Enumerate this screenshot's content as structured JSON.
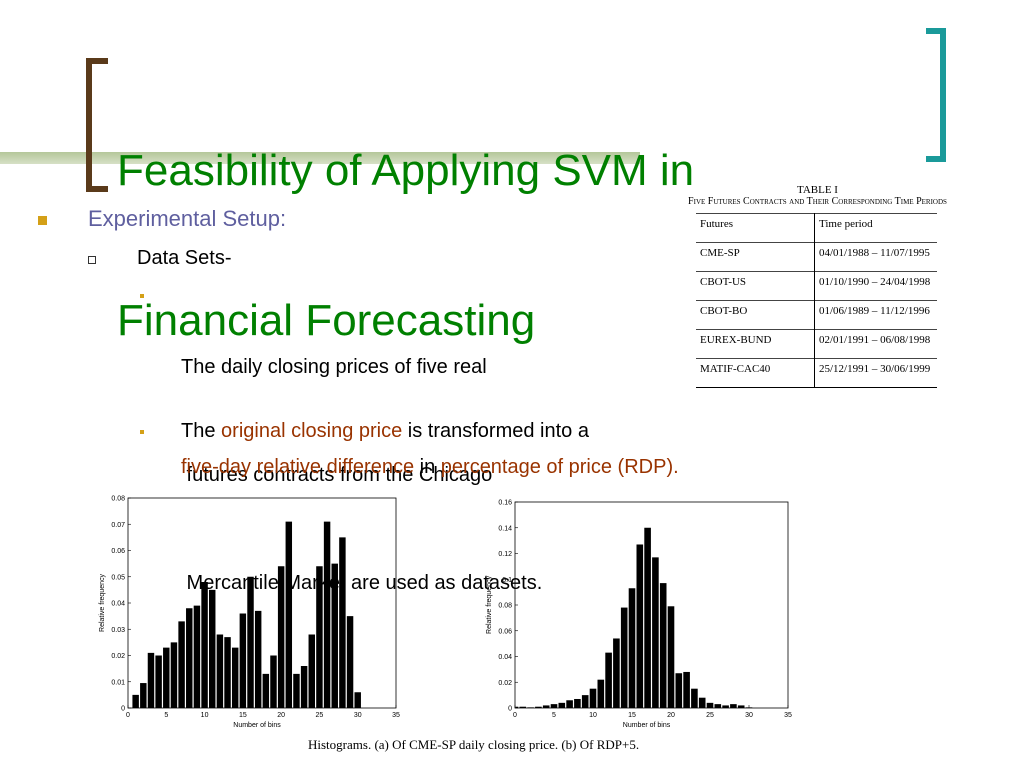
{
  "title": {
    "lines": [
      "Feasibility of Applying SVM in",
      "Financial Forecasting"
    ]
  },
  "bullets": {
    "level1": "Experimental Setup:",
    "level2": "Data Sets-",
    "items": [
      {
        "lines": [
          "The daily closing prices of five real",
          " futures contracts from the Chicago",
          " Mercantile Market are used as datasets."
        ]
      },
      {
        "lines": [
          [
            {
              "text": "The ",
              "color": "#000000"
            },
            {
              "text": "original closing price",
              "color": "#993300"
            },
            {
              "text": " is transformed into a",
              "color": "#000000"
            }
          ],
          [
            {
              "text": "five-day relative difference",
              "color": "#993300"
            },
            {
              "text": " in ",
              "color": "#000000"
            },
            {
              "text": "percentage of price (RDP).",
              "color": "#993300"
            }
          ]
        ]
      }
    ]
  },
  "table": {
    "label": "TABLE I",
    "caption": "Five Futures Contracts and Their Corresponding Time Periods",
    "columns": [
      "Futures",
      "Time period"
    ],
    "rows": [
      [
        "CME-SP",
        "04/01/1988 – 11/07/1995"
      ],
      [
        "CBOT-US",
        "01/10/1990 – 24/04/1998"
      ],
      [
        "CBOT-BO",
        "01/06/1989 – 11/12/1996"
      ],
      [
        "EUREX-BUND",
        "02/01/1991 – 06/08/1998"
      ],
      [
        "MATIF-CAC40",
        "25/12/1991 – 30/06/1999"
      ]
    ]
  },
  "chart_data": [
    {
      "type": "histogram",
      "x_label": "Number of bins",
      "y_label": "Relative frequency",
      "color": "#000000",
      "bins": [
        0.5,
        1.5,
        2.5,
        3.5,
        4.5,
        5.5,
        6.5,
        7.5,
        8.5,
        9.5,
        10.5,
        11.5,
        12.5,
        13.5,
        14.5,
        15.5,
        16.5,
        17.5,
        18.5,
        19.5,
        20.5,
        21.5,
        22.5,
        23.5,
        24.5,
        25.5,
        26.5,
        27.5,
        28.5,
        29.5,
        30.5
      ],
      "values": [
        0.005,
        0.0095,
        0.021,
        0.02,
        0.023,
        0.025,
        0.033,
        0.038,
        0.039,
        0.048,
        0.045,
        0.028,
        0.027,
        0.023,
        0.036,
        0.05,
        0.037,
        0.013,
        0.02,
        0.054,
        0.071,
        0.013,
        0.016,
        0.028,
        0.054,
        0.071,
        0.055,
        0.065,
        0.035,
        0.006
      ],
      "xlim": [
        0,
        35
      ],
      "xticks": [
        0,
        5,
        10,
        15,
        20,
        25,
        30,
        35
      ],
      "ylim": [
        0,
        0.08
      ],
      "yticks": [
        0,
        0.01,
        0.02,
        0.03,
        0.04,
        0.05,
        0.06,
        0.07,
        0.08
      ]
    },
    {
      "type": "histogram",
      "x_label": "Number of bins",
      "y_label": "Relative frequency",
      "color": "#000000",
      "bins": [
        -0.5,
        0.5,
        1.5,
        2.5,
        3.5,
        4.5,
        5.5,
        6.5,
        7.5,
        8.5,
        9.5,
        10.5,
        11.5,
        12.5,
        13.5,
        14.5,
        15.5,
        16.5,
        17.5,
        18.5,
        19.5,
        20.5,
        21.5,
        22.5,
        23.5,
        24.5,
        25.5,
        26.5,
        27.5,
        28.5,
        29.5,
        30.5
      ],
      "values": [
        0.001,
        0.001,
        0.0005,
        0.001,
        0.002,
        0.003,
        0.004,
        0.006,
        0.007,
        0.01,
        0.015,
        0.022,
        0.043,
        0.054,
        0.078,
        0.093,
        0.127,
        0.14,
        0.117,
        0.097,
        0.079,
        0.027,
        0.028,
        0.015,
        0.008,
        0.004,
        0.003,
        0.002,
        0.003,
        0.002,
        0.0005
      ],
      "xlim": [
        0,
        35
      ],
      "xticks": [
        0,
        5,
        10,
        15,
        20,
        25,
        30,
        35
      ],
      "ylim": [
        0,
        0.16
      ],
      "yticks": [
        0,
        0.02,
        0.04,
        0.06,
        0.08,
        0.1,
        0.12,
        0.14,
        0.16
      ]
    }
  ],
  "figure_caption": "Histograms. (a) Of CME-SP daily closing price. (b) Of RDP+5."
}
